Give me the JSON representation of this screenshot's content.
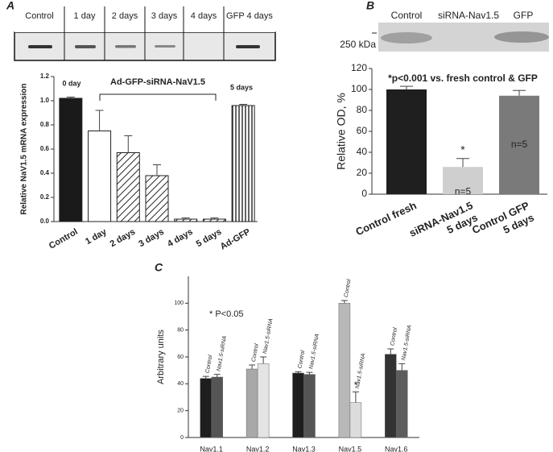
{
  "chart_data": [
    {
      "type": "bar",
      "panel": "A",
      "gel_lanes": [
        "Control",
        "1 day",
        "2 days",
        "3 days",
        "4 days",
        "GFP 4 days"
      ],
      "categories": [
        "Control",
        "1 day",
        "2 days",
        "3 days",
        "4 days",
        "5 days",
        "Ad-GFP"
      ],
      "values": [
        1.02,
        0.75,
        0.57,
        0.38,
        0.02,
        0.02,
        0.96
      ],
      "errors": [
        0.01,
        0.17,
        0.14,
        0.09,
        0.01,
        0.01,
        0.01
      ],
      "patterns": [
        "solid",
        "empty",
        "diagonal",
        "diagonal",
        "diagonal",
        "diagonal",
        "vertical"
      ],
      "color": "#1a1a1a",
      "y_label": "Relative NaV1.5 mRNA expression",
      "annotations": [
        "0 day",
        "Ad-GFP-siRNA-NaV1.5",
        "5 days"
      ],
      "ylim": [
        0,
        1.2
      ],
      "yticks": [
        {
          "value": 0,
          "label": "0.0"
        },
        {
          "value": 0.2,
          "label": "0.2"
        },
        {
          "value": 0.4,
          "label": "0.4"
        },
        {
          "value": 0.6,
          "label": "0.6"
        },
        {
          "value": 0.8,
          "label": "0.8"
        },
        {
          "value": 1,
          "label": "1.0"
        },
        {
          "value": 1.2,
          "label": "1.2"
        }
      ]
    },
    {
      "type": "bar",
      "panel": "B",
      "gel_lanes": [
        "Control",
        "siRNA-Nav1.5",
        "GFP"
      ],
      "marker_label": "250 kDa",
      "categories": [
        [
          "Control fresh"
        ],
        [
          "siRNA-Nav1.5",
          "5 days"
        ],
        [
          "Control GFP",
          "5 days"
        ]
      ],
      "values": [
        100,
        26,
        94
      ],
      "errors": [
        3,
        8,
        5
      ],
      "colors": [
        "#1f1f1f",
        "#cfcfcf",
        "#7a7a7a"
      ],
      "bar_labels": [
        "n=5",
        "n=5",
        "n=5"
      ],
      "significance": [
        null,
        "*",
        null
      ],
      "y_label": "Relative OD, %",
      "annotation": "*p<0.001 vs. fresh control & GFP",
      "ylim": [
        0,
        120
      ],
      "yticks": [
        0,
        20,
        40,
        60,
        80,
        100,
        120
      ]
    },
    {
      "type": "grouped_bar",
      "panel": "C",
      "categories": [
        "Nav1.1",
        "Nav1.2",
        "Nav1.3",
        "Nav1.5",
        "Nav1.6"
      ],
      "series": [
        {
          "name": "Control",
          "values": [
            44,
            51,
            48,
            100,
            62
          ],
          "errors": [
            1.5,
            3,
            1,
            2,
            4
          ],
          "colors": [
            "#1e1e1e",
            "#a8a8a8",
            "#1e1e1e",
            "#b8b8b8",
            "#333333"
          ]
        },
        {
          "name": "Nav1.5-siRNA",
          "values": [
            45,
            55,
            47,
            26,
            50
          ],
          "errors": [
            2,
            5,
            1.5,
            8,
            5
          ],
          "colors": [
            "#555555",
            "#e4e4e4",
            "#555555",
            "#dcdcdc",
            "#5c5c5c"
          ],
          "significance": [
            null,
            null,
            null,
            "*",
            null
          ]
        }
      ],
      "y_label": "Arbitrary units",
      "annotation": "* P<0.05",
      "ylim": [
        0,
        120
      ],
      "yticks": [
        0,
        20,
        40,
        60,
        80,
        100
      ]
    }
  ]
}
